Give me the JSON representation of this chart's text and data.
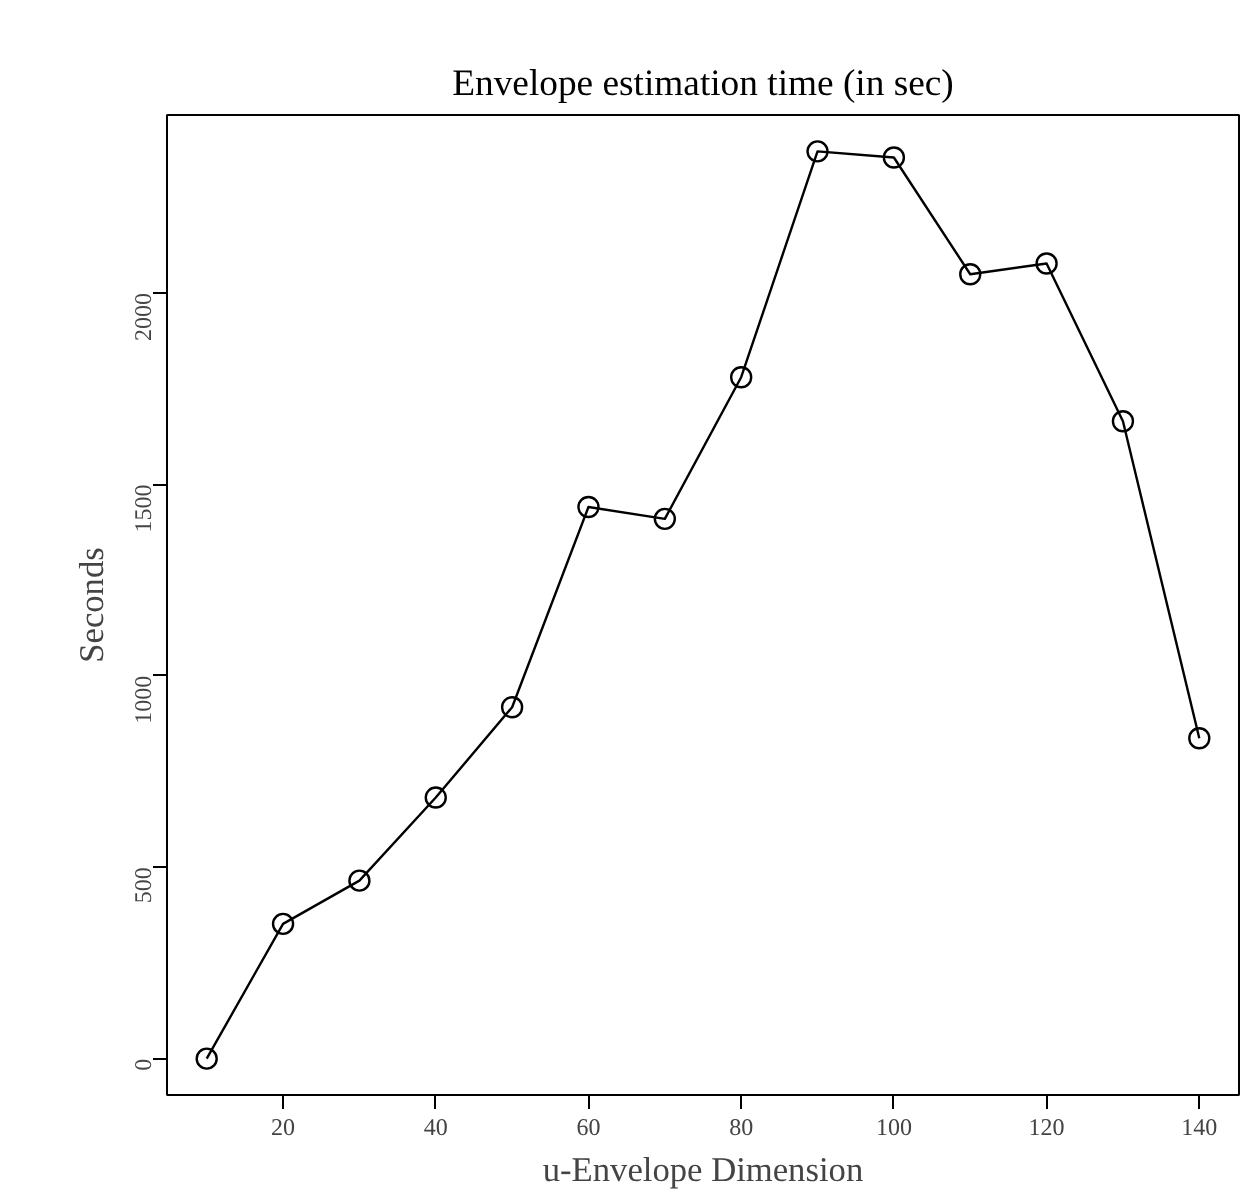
{
  "chart_data": {
    "type": "line",
    "title": "Envelope estimation time (in sec)",
    "xlabel": "u-Envelope Dimension",
    "ylabel": "Seconds",
    "x": [
      10,
      20,
      30,
      40,
      50,
      60,
      70,
      80,
      90,
      100,
      110,
      120,
      130,
      140
    ],
    "series": [
      {
        "color": "#000000",
        "values": [
          0,
          352,
          465,
          682,
          918,
          1441,
          1410,
          1780,
          2370,
          2354,
          2049,
          2077,
          1665,
          837
        ]
      }
    ],
    "xlim": [
      4.8,
      145.2
    ],
    "ylim": [
      -95,
      2465
    ],
    "xticks": [
      20,
      40,
      60,
      80,
      100,
      120,
      140
    ],
    "yticks": [
      0,
      500,
      1000,
      1500,
      2000
    ],
    "marker": "circle",
    "line_style": "solid",
    "grid": false
  }
}
